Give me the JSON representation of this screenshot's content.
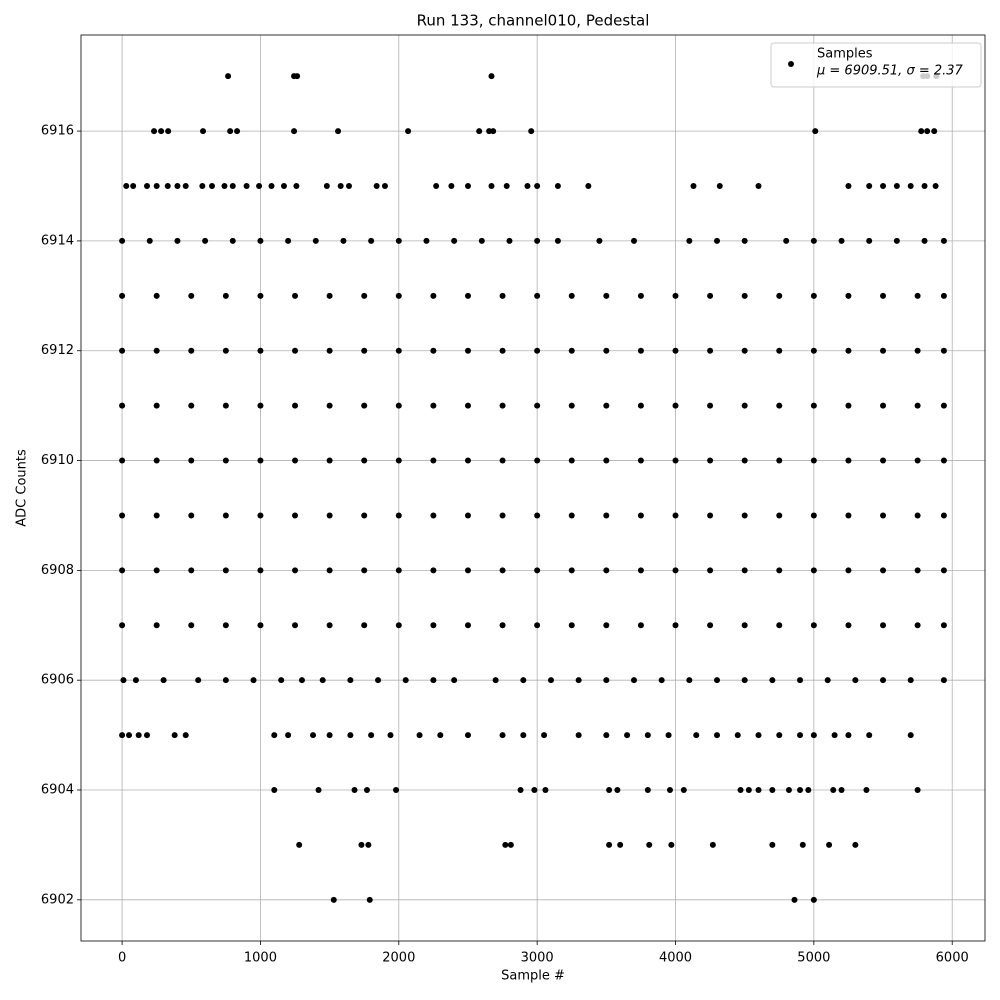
{
  "chart_data": {
    "type": "scatter",
    "title": "Run 133, channel010, Pedestal",
    "xlabel": "Sample #",
    "ylabel": "ADC Counts",
    "xlim": [
      -297,
      6237
    ],
    "ylim": [
      6901.25,
      6917.75
    ],
    "xticks": [
      0,
      1000,
      2000,
      3000,
      4000,
      5000,
      6000
    ],
    "yticks": [
      6902,
      6904,
      6906,
      6908,
      6910,
      6912,
      6914,
      6916
    ],
    "grid": true,
    "legend": "upper right",
    "annotation": "μ = 6909.51, σ = 2.37",
    "series": [
      {
        "name": "Samples",
        "color": "#000000",
        "x": [
          766,
          1243,
          1265,
          2670,
          5790,
          5820,
          5885,
          231,
          282,
          333,
          585,
          781,
          831,
          1243,
          1561,
          2067,
          2581,
          2653,
          2682,
          2957,
          5010,
          5776,
          5819,
          5870,
          30,
          80,
          180,
          250,
          330,
          400,
          460,
          580,
          650,
          740,
          800,
          900,
          990,
          1080,
          1170,
          1260,
          1480,
          1580,
          1640,
          1840,
          1900,
          2270,
          2380,
          2500,
          2670,
          2780,
          2930,
          3000,
          3150,
          3370,
          4130,
          4320,
          4600,
          5250,
          5400,
          5500,
          5600,
          5700,
          5800,
          5880,
          0,
          200,
          400,
          600,
          800,
          1000,
          1200,
          1400,
          1600,
          1800,
          2000,
          2200,
          2400,
          2600,
          2800,
          3000,
          3150,
          3450,
          3700,
          4100,
          4300,
          4500,
          4800,
          5000,
          5200,
          5400,
          5600,
          5800,
          5940,
          0,
          250,
          500,
          750,
          1000,
          1250,
          1500,
          1750,
          2000,
          2250,
          2500,
          2750,
          3000,
          3250,
          3500,
          3750,
          4000,
          4250,
          4500,
          4750,
          5000,
          5250,
          5500,
          5750,
          5940,
          0,
          250,
          500,
          750,
          1000,
          1250,
          1500,
          1750,
          2000,
          2250,
          2500,
          2750,
          3000,
          3250,
          3500,
          3750,
          4000,
          4250,
          4500,
          4750,
          5000,
          5250,
          5500,
          5750,
          5940,
          0,
          250,
          500,
          750,
          1000,
          1250,
          1500,
          1750,
          2000,
          2250,
          2500,
          2750,
          3000,
          3250,
          3500,
          3750,
          4000,
          4250,
          4500,
          4750,
          5000,
          5250,
          5500,
          5750,
          5940,
          0,
          250,
          500,
          750,
          1000,
          1250,
          1500,
          1750,
          2000,
          2250,
          2500,
          2750,
          3000,
          3250,
          3500,
          3750,
          4000,
          4250,
          4500,
          4750,
          5000,
          5250,
          5500,
          5750,
          5940,
          0,
          250,
          500,
          750,
          1000,
          1250,
          1500,
          1750,
          2000,
          2250,
          2500,
          2750,
          3000,
          3250,
          3500,
          3750,
          4000,
          4250,
          4500,
          4750,
          5000,
          5250,
          5500,
          5750,
          5940,
          0,
          250,
          500,
          750,
          1000,
          1250,
          1500,
          1750,
          2000,
          2250,
          2500,
          2750,
          3000,
          3250,
          3500,
          3750,
          4000,
          4250,
          4500,
          4750,
          5000,
          5250,
          5500,
          5750,
          5940,
          0,
          250,
          500,
          750,
          1000,
          1250,
          1500,
          1750,
          2000,
          2250,
          2500,
          2750,
          3000,
          3250,
          3500,
          3750,
          4000,
          4250,
          4500,
          4750,
          5000,
          5250,
          5500,
          5750,
          5940,
          10,
          100,
          300,
          550,
          750,
          950,
          1150,
          1300,
          1450,
          1650,
          1850,
          2050,
          2250,
          2400,
          2700,
          2900,
          3100,
          3300,
          3500,
          3700,
          3900,
          4100,
          4300,
          4500,
          4700,
          4900,
          5100,
          5300,
          5500,
          5700,
          5940,
          0,
          50,
          120,
          180,
          380,
          460,
          1100,
          1200,
          1380,
          1500,
          1650,
          1800,
          1940,
          2150,
          2300,
          2500,
          2750,
          2900,
          3050,
          3300,
          3500,
          3650,
          3800,
          3950,
          4150,
          4300,
          4450,
          4600,
          4750,
          4900,
          5000,
          5150,
          5250,
          5400,
          5700,
          1100,
          1420,
          1680,
          1770,
          1980,
          2880,
          2980,
          3060,
          3520,
          3580,
          3800,
          3960,
          4060,
          4470,
          4530,
          4600,
          4700,
          4820,
          4900,
          4960,
          5140,
          5200,
          5380,
          5750,
          1280,
          1730,
          1780,
          2770,
          2810,
          3520,
          3600,
          3810,
          3970,
          4270,
          4700,
          4920,
          5110,
          5300,
          1530,
          1790,
          4860,
          5000
        ],
        "values": [
          6917,
          6917,
          6917,
          6917,
          6917,
          6917,
          6917,
          6916,
          6916,
          6916,
          6916,
          6916,
          6916,
          6916,
          6916,
          6916,
          6916,
          6916,
          6916,
          6916,
          6916,
          6916,
          6916,
          6916,
          6915,
          6915,
          6915,
          6915,
          6915,
          6915,
          6915,
          6915,
          6915,
          6915,
          6915,
          6915,
          6915,
          6915,
          6915,
          6915,
          6915,
          6915,
          6915,
          6915,
          6915,
          6915,
          6915,
          6915,
          6915,
          6915,
          6915,
          6915,
          6915,
          6915,
          6915,
          6915,
          6915,
          6915,
          6915,
          6915,
          6915,
          6915,
          6915,
          6915,
          6914,
          6914,
          6914,
          6914,
          6914,
          6914,
          6914,
          6914,
          6914,
          6914,
          6914,
          6914,
          6914,
          6914,
          6914,
          6914,
          6914,
          6914,
          6914,
          6914,
          6914,
          6914,
          6914,
          6914,
          6914,
          6914,
          6914,
          6914,
          6914,
          6913,
          6913,
          6913,
          6913,
          6913,
          6913,
          6913,
          6913,
          6913,
          6913,
          6913,
          6913,
          6913,
          6913,
          6913,
          6913,
          6913,
          6913,
          6913,
          6913,
          6913,
          6913,
          6913,
          6913,
          6913,
          6912,
          6912,
          6912,
          6912,
          6912,
          6912,
          6912,
          6912,
          6912,
          6912,
          6912,
          6912,
          6912,
          6912,
          6912,
          6912,
          6912,
          6912,
          6912,
          6912,
          6912,
          6912,
          6912,
          6912,
          6912,
          6911,
          6911,
          6911,
          6911,
          6911,
          6911,
          6911,
          6911,
          6911,
          6911,
          6911,
          6911,
          6911,
          6911,
          6911,
          6911,
          6911,
          6911,
          6911,
          6911,
          6911,
          6911,
          6911,
          6911,
          6911,
          6910,
          6910,
          6910,
          6910,
          6910,
          6910,
          6910,
          6910,
          6910,
          6910,
          6910,
          6910,
          6910,
          6910,
          6910,
          6910,
          6910,
          6910,
          6910,
          6910,
          6910,
          6910,
          6910,
          6910,
          6910,
          6909,
          6909,
          6909,
          6909,
          6909,
          6909,
          6909,
          6909,
          6909,
          6909,
          6909,
          6909,
          6909,
          6909,
          6909,
          6909,
          6909,
          6909,
          6909,
          6909,
          6909,
          6909,
          6909,
          6909,
          6909,
          6908,
          6908,
          6908,
          6908,
          6908,
          6908,
          6908,
          6908,
          6908,
          6908,
          6908,
          6908,
          6908,
          6908,
          6908,
          6908,
          6908,
          6908,
          6908,
          6908,
          6908,
          6908,
          6908,
          6908,
          6908,
          6907,
          6907,
          6907,
          6907,
          6907,
          6907,
          6907,
          6907,
          6907,
          6907,
          6907,
          6907,
          6907,
          6907,
          6907,
          6907,
          6907,
          6907,
          6907,
          6907,
          6907,
          6907,
          6907,
          6907,
          6907,
          6906,
          6906,
          6906,
          6906,
          6906,
          6906,
          6906,
          6906,
          6906,
          6906,
          6906,
          6906,
          6906,
          6906,
          6906,
          6906,
          6906,
          6906,
          6906,
          6906,
          6906,
          6906,
          6906,
          6906,
          6906,
          6906,
          6906,
          6906,
          6906,
          6906,
          6906,
          6905,
          6905,
          6905,
          6905,
          6905,
          6905,
          6905,
          6905,
          6905,
          6905,
          6905,
          6905,
          6905,
          6905,
          6905,
          6905,
          6905,
          6905,
          6905,
          6905,
          6905,
          6905,
          6905,
          6905,
          6905,
          6905,
          6905,
          6905,
          6905,
          6905,
          6905,
          6905,
          6905,
          6905,
          6905,
          6904,
          6904,
          6904,
          6904,
          6904,
          6904,
          6904,
          6904,
          6904,
          6904,
          6904,
          6904,
          6904,
          6904,
          6904,
          6904,
          6904,
          6904,
          6904,
          6904,
          6904,
          6904,
          6904,
          6904,
          6903,
          6903,
          6903,
          6903,
          6903,
          6903,
          6903,
          6903,
          6903,
          6903,
          6903,
          6903,
          6903,
          6903,
          6902,
          6902,
          6902,
          6902
        ]
      }
    ]
  }
}
